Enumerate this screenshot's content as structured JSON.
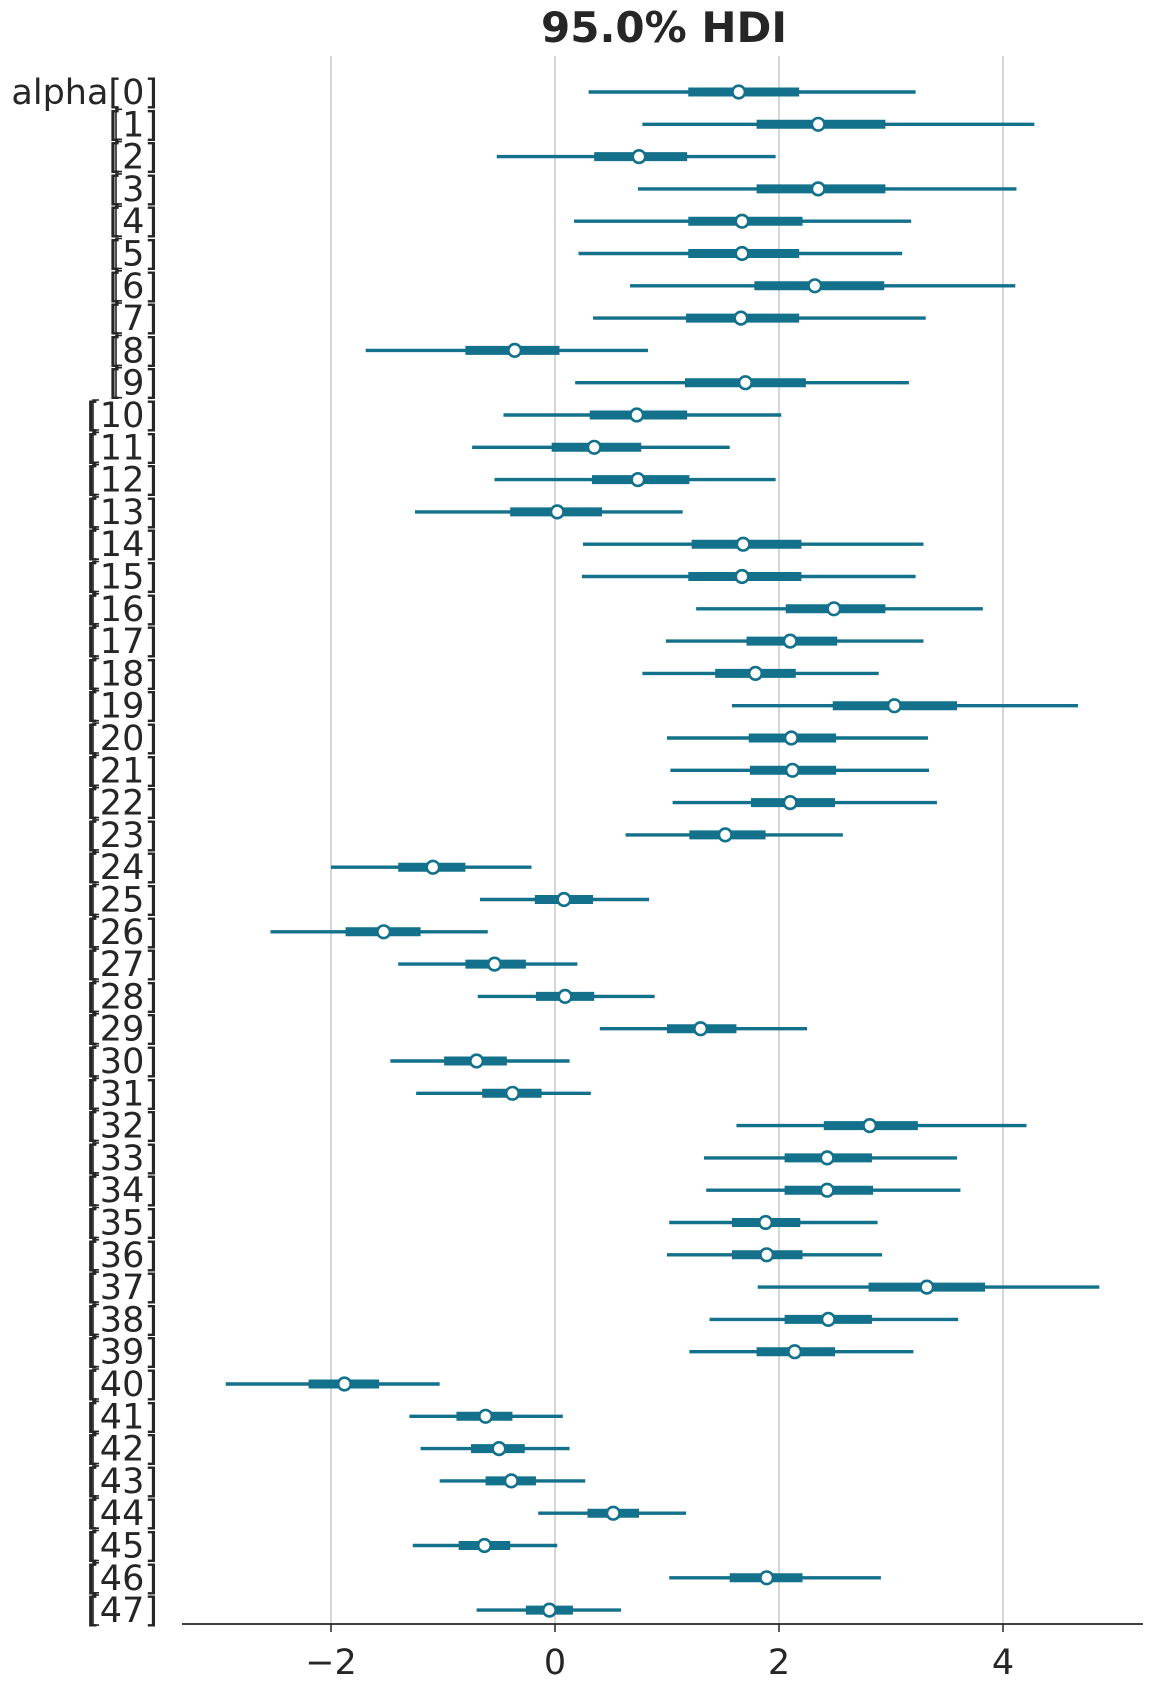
{
  "chart_data": {
    "type": "forest",
    "title": "95.0% HDI",
    "variable": "alpha",
    "x_ticks": [
      -2,
      0,
      2,
      4
    ],
    "x_tick_labels": [
      "−2",
      "0",
      "2",
      "4"
    ],
    "xlim": [
      -3.3,
      5.3
    ],
    "grid": "vertical",
    "color": "#13718c",
    "labels": [
      "alpha[0]",
      "[1]",
      "[2]",
      "[3]",
      "[4]",
      "[5]",
      "[6]",
      "[7]",
      "[8]",
      "[9]",
      "[10]",
      "[11]",
      "[12]",
      "[13]",
      "[14]",
      "[15]",
      "[16]",
      "[17]",
      "[18]",
      "[19]",
      "[20]",
      "[21]",
      "[22]",
      "[23]",
      "[24]",
      "[25]",
      "[26]",
      "[27]",
      "[28]",
      "[29]",
      "[30]",
      "[31]",
      "[32]",
      "[33]",
      "[34]",
      "[35]",
      "[36]",
      "[37]",
      "[38]",
      "[39]",
      "[40]",
      "[41]",
      "[42]",
      "[43]",
      "[44]",
      "[45]",
      "[46]",
      "[47]"
    ],
    "series": [
      {
        "name": "alpha[0]",
        "hdi_low": 0.3,
        "iqr_low": 1.19,
        "median": 1.64,
        "iqr_high": 2.18,
        "hdi_high": 3.22
      },
      {
        "name": "[1]",
        "hdi_low": 0.78,
        "iqr_low": 1.8,
        "median": 2.35,
        "iqr_high": 2.95,
        "hdi_high": 4.28
      },
      {
        "name": "[2]",
        "hdi_low": -0.52,
        "iqr_low": 0.35,
        "median": 0.75,
        "iqr_high": 1.18,
        "hdi_high": 1.97
      },
      {
        "name": "[3]",
        "hdi_low": 0.74,
        "iqr_low": 1.8,
        "median": 2.35,
        "iqr_high": 2.95,
        "hdi_high": 4.12
      },
      {
        "name": "[4]",
        "hdi_low": 0.17,
        "iqr_low": 1.19,
        "median": 1.67,
        "iqr_high": 2.21,
        "hdi_high": 3.18
      },
      {
        "name": "[5]",
        "hdi_low": 0.21,
        "iqr_low": 1.19,
        "median": 1.67,
        "iqr_high": 2.18,
        "hdi_high": 3.1
      },
      {
        "name": "[6]",
        "hdi_low": 0.67,
        "iqr_low": 1.78,
        "median": 2.32,
        "iqr_high": 2.94,
        "hdi_high": 4.11
      },
      {
        "name": "[7]",
        "hdi_low": 0.34,
        "iqr_low": 1.17,
        "median": 1.66,
        "iqr_high": 2.18,
        "hdi_high": 3.31
      },
      {
        "name": "[8]",
        "hdi_low": -1.69,
        "iqr_low": -0.8,
        "median": -0.36,
        "iqr_high": 0.04,
        "hdi_high": 0.83
      },
      {
        "name": "[9]",
        "hdi_low": 0.18,
        "iqr_low": 1.16,
        "median": 1.7,
        "iqr_high": 2.24,
        "hdi_high": 3.16
      },
      {
        "name": "[10]",
        "hdi_low": -0.46,
        "iqr_low": 0.31,
        "median": 0.73,
        "iqr_high": 1.18,
        "hdi_high": 2.02
      },
      {
        "name": "[11]",
        "hdi_low": -0.74,
        "iqr_low": -0.03,
        "median": 0.35,
        "iqr_high": 0.77,
        "hdi_high": 1.56
      },
      {
        "name": "[12]",
        "hdi_low": -0.54,
        "iqr_low": 0.33,
        "median": 0.74,
        "iqr_high": 1.2,
        "hdi_high": 1.97
      },
      {
        "name": "[13]",
        "hdi_low": -1.25,
        "iqr_low": -0.4,
        "median": 0.02,
        "iqr_high": 0.42,
        "hdi_high": 1.14
      },
      {
        "name": "[14]",
        "hdi_low": 0.25,
        "iqr_low": 1.22,
        "median": 1.68,
        "iqr_high": 2.2,
        "hdi_high": 3.29
      },
      {
        "name": "[15]",
        "hdi_low": 0.24,
        "iqr_low": 1.19,
        "median": 1.67,
        "iqr_high": 2.2,
        "hdi_high": 3.22
      },
      {
        "name": "[16]",
        "hdi_low": 1.26,
        "iqr_low": 2.06,
        "median": 2.49,
        "iqr_high": 2.95,
        "hdi_high": 3.82
      },
      {
        "name": "[17]",
        "hdi_low": 0.99,
        "iqr_low": 1.71,
        "median": 2.1,
        "iqr_high": 2.52,
        "hdi_high": 3.29
      },
      {
        "name": "[18]",
        "hdi_low": 0.78,
        "iqr_low": 1.43,
        "median": 1.79,
        "iqr_high": 2.15,
        "hdi_high": 2.89
      },
      {
        "name": "[19]",
        "hdi_low": 1.58,
        "iqr_low": 2.48,
        "median": 3.03,
        "iqr_high": 3.59,
        "hdi_high": 4.67
      },
      {
        "name": "[20]",
        "hdi_low": 1.0,
        "iqr_low": 1.73,
        "median": 2.11,
        "iqr_high": 2.51,
        "hdi_high": 3.33
      },
      {
        "name": "[21]",
        "hdi_low": 1.03,
        "iqr_low": 1.74,
        "median": 2.12,
        "iqr_high": 2.51,
        "hdi_high": 3.34
      },
      {
        "name": "[22]",
        "hdi_low": 1.05,
        "iqr_low": 1.75,
        "median": 2.1,
        "iqr_high": 2.5,
        "hdi_high": 3.41
      },
      {
        "name": "[23]",
        "hdi_low": 0.63,
        "iqr_low": 1.2,
        "median": 1.52,
        "iqr_high": 1.88,
        "hdi_high": 2.57
      },
      {
        "name": "[24]",
        "hdi_low": -2.0,
        "iqr_low": -1.4,
        "median": -1.09,
        "iqr_high": -0.8,
        "hdi_high": -0.21
      },
      {
        "name": "[25]",
        "hdi_low": -0.67,
        "iqr_low": -0.18,
        "median": 0.08,
        "iqr_high": 0.34,
        "hdi_high": 0.84
      },
      {
        "name": "[26]",
        "hdi_low": -2.54,
        "iqr_low": -1.87,
        "median": -1.53,
        "iqr_high": -1.2,
        "hdi_high": -0.6
      },
      {
        "name": "[27]",
        "hdi_low": -1.4,
        "iqr_low": -0.8,
        "median": -0.54,
        "iqr_high": -0.26,
        "hdi_high": 0.2
      },
      {
        "name": "[28]",
        "hdi_low": -0.69,
        "iqr_low": -0.17,
        "median": 0.09,
        "iqr_high": 0.35,
        "hdi_high": 0.89
      },
      {
        "name": "[29]",
        "hdi_low": 0.4,
        "iqr_low": 1.0,
        "median": 1.3,
        "iqr_high": 1.62,
        "hdi_high": 2.25
      },
      {
        "name": "[30]",
        "hdi_low": -1.47,
        "iqr_low": -0.99,
        "median": -0.7,
        "iqr_high": -0.43,
        "hdi_high": 0.13
      },
      {
        "name": "[31]",
        "hdi_low": -1.24,
        "iqr_low": -0.65,
        "median": -0.38,
        "iqr_high": -0.12,
        "hdi_high": 0.32
      },
      {
        "name": "[32]",
        "hdi_low": 1.62,
        "iqr_low": 2.4,
        "median": 2.81,
        "iqr_high": 3.24,
        "hdi_high": 4.21
      },
      {
        "name": "[33]",
        "hdi_low": 1.33,
        "iqr_low": 2.05,
        "median": 2.43,
        "iqr_high": 2.83,
        "hdi_high": 3.59
      },
      {
        "name": "[34]",
        "hdi_low": 1.35,
        "iqr_low": 2.05,
        "median": 2.43,
        "iqr_high": 2.84,
        "hdi_high": 3.62
      },
      {
        "name": "[35]",
        "hdi_low": 1.02,
        "iqr_low": 1.58,
        "median": 1.88,
        "iqr_high": 2.19,
        "hdi_high": 2.88
      },
      {
        "name": "[36]",
        "hdi_low": 1.0,
        "iqr_low": 1.58,
        "median": 1.89,
        "iqr_high": 2.21,
        "hdi_high": 2.92
      },
      {
        "name": "[37]",
        "hdi_low": 1.81,
        "iqr_low": 2.8,
        "median": 3.32,
        "iqr_high": 3.84,
        "hdi_high": 4.86
      },
      {
        "name": "[38]",
        "hdi_low": 1.38,
        "iqr_low": 2.05,
        "median": 2.44,
        "iqr_high": 2.83,
        "hdi_high": 3.6
      },
      {
        "name": "[39]",
        "hdi_low": 1.2,
        "iqr_low": 1.8,
        "median": 2.14,
        "iqr_high": 2.5,
        "hdi_high": 3.2
      },
      {
        "name": "[40]",
        "hdi_low": -2.94,
        "iqr_low": -2.2,
        "median": -1.88,
        "iqr_high": -1.57,
        "hdi_high": -1.03
      },
      {
        "name": "[41]",
        "hdi_low": -1.3,
        "iqr_low": -0.88,
        "median": -0.62,
        "iqr_high": -0.38,
        "hdi_high": 0.07
      },
      {
        "name": "[42]",
        "hdi_low": -1.2,
        "iqr_low": -0.75,
        "median": -0.5,
        "iqr_high": -0.27,
        "hdi_high": 0.13
      },
      {
        "name": "[43]",
        "hdi_low": -1.03,
        "iqr_low": -0.62,
        "median": -0.39,
        "iqr_high": -0.17,
        "hdi_high": 0.27
      },
      {
        "name": "[44]",
        "hdi_low": -0.15,
        "iqr_low": 0.29,
        "median": 0.52,
        "iqr_high": 0.75,
        "hdi_high": 1.17
      },
      {
        "name": "[45]",
        "hdi_low": -1.27,
        "iqr_low": -0.86,
        "median": -0.63,
        "iqr_high": -0.4,
        "hdi_high": 0.02
      },
      {
        "name": "[46]",
        "hdi_low": 1.02,
        "iqr_low": 1.56,
        "median": 1.89,
        "iqr_high": 2.21,
        "hdi_high": 2.91
      },
      {
        "name": "[47]",
        "hdi_low": -0.7,
        "iqr_low": -0.26,
        "median": -0.05,
        "iqr_high": 0.16,
        "hdi_high": 0.59
      }
    ]
  }
}
